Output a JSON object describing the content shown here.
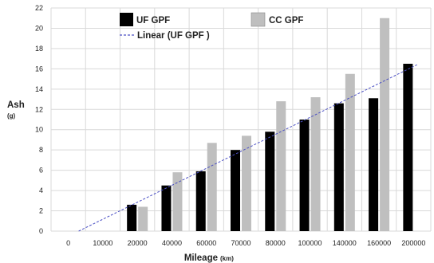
{
  "chart_data": {
    "type": "bar",
    "title": "",
    "xlabel": "Mileage",
    "xlabel_unit": "(km)",
    "ylabel": "Ash",
    "ylabel_unit": "(g)",
    "ylim": [
      0,
      22
    ],
    "yticks": [
      0,
      2,
      4,
      6,
      8,
      10,
      12,
      14,
      16,
      18,
      20,
      22
    ],
    "categories": [
      "0",
      "10000",
      "20000",
      "40000",
      "60000",
      "70000",
      "80000",
      "100000",
      "140000",
      "160000",
      "200000"
    ],
    "series": [
      {
        "name": "UF  GPF",
        "color": "#000000",
        "values": [
          null,
          null,
          2.6,
          4.5,
          5.9,
          8.0,
          9.8,
          11.0,
          12.6,
          13.1,
          16.5
        ]
      },
      {
        "name": "CC GPF",
        "color": "#bfbfbf",
        "values": [
          null,
          null,
          2.4,
          5.8,
          8.7,
          9.4,
          12.8,
          13.2,
          15.5,
          21.0,
          null
        ]
      }
    ],
    "trendline": {
      "name": "Linear (UF  GPF )",
      "color": "#4a4fc4",
      "style": "dashed",
      "start": {
        "category_index": 0.3,
        "value": 0.0
      },
      "end": {
        "category_index": 10.1,
        "value": 16.4
      }
    },
    "grid": {
      "x": true,
      "y": true
    },
    "legend": {
      "position": "top-left"
    }
  }
}
